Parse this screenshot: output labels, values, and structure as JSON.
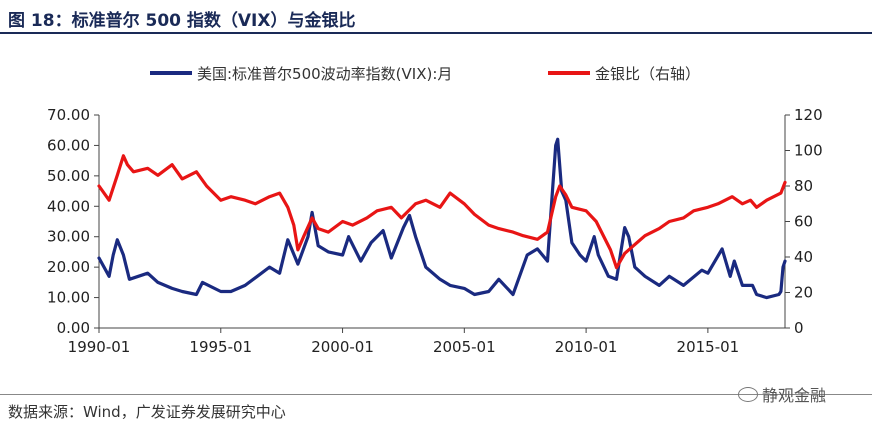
{
  "title": "图 18：标准普尔 500 指数（VIX）与金银比",
  "source": "数据来源：Wind，广发证券发展研究中心",
  "watermark": "静观金融",
  "colors": {
    "vix": "#1a2a80",
    "gold_silver": "#e81515",
    "title": "#1a2a57"
  },
  "chart_data": {
    "type": "line",
    "title": "",
    "legend_position": "top",
    "grid": false,
    "x_tick_labels": [
      "1990-01",
      "1995-01",
      "2000-01",
      "2005-01",
      "2010-01",
      "2015-01"
    ],
    "x_range": [
      "1990-01",
      "2018-03"
    ],
    "left_axis": {
      "ylim": [
        0,
        70
      ],
      "tick_labels": [
        "0.00",
        "10.00",
        "20.00",
        "30.00",
        "40.00",
        "50.00",
        "60.00",
        "70.00"
      ]
    },
    "right_axis": {
      "ylim": [
        0,
        120
      ],
      "tick_labels": [
        "0",
        "20",
        "40",
        "60",
        "80",
        "100",
        "120"
      ]
    },
    "series": [
      {
        "name": "美国:标准普尔500波动率指数(VIX):月",
        "axis": "left",
        "color": "#1a2a80",
        "x": [
          "1990-01",
          "1990-06",
          "1990-08",
          "1990-10",
          "1991-01",
          "1991-04",
          "1992-01",
          "1992-06",
          "1993-01",
          "1993-06",
          "1994-01",
          "1994-04",
          "1995-01",
          "1995-06",
          "1996-01",
          "1996-07",
          "1997-01",
          "1997-06",
          "1997-10",
          "1998-03",
          "1998-08",
          "1998-10",
          "1999-01",
          "1999-06",
          "2000-01",
          "2000-04",
          "2000-10",
          "2001-03",
          "2001-09",
          "2002-01",
          "2002-07",
          "2002-10",
          "2003-01",
          "2003-06",
          "2004-01",
          "2004-06",
          "2005-01",
          "2005-06",
          "2006-01",
          "2006-06",
          "2007-01",
          "2007-08",
          "2008-01",
          "2008-06",
          "2008-10",
          "2008-11",
          "2009-01",
          "2009-03",
          "2009-06",
          "2009-10",
          "2010-01",
          "2010-05",
          "2010-07",
          "2010-12",
          "2011-04",
          "2011-08",
          "2011-10",
          "2012-01",
          "2012-06",
          "2013-01",
          "2013-06",
          "2014-01",
          "2014-10",
          "2015-01",
          "2015-08",
          "2015-12",
          "2016-02",
          "2016-06",
          "2016-11",
          "2017-01",
          "2017-06",
          "2017-12",
          "2018-01",
          "2018-02",
          "2018-03"
        ],
        "values": [
          23,
          17,
          24,
          29,
          24,
          16,
          18,
          15,
          13,
          12,
          11,
          15,
          12,
          12,
          14,
          17,
          20,
          18,
          29,
          21,
          30,
          38,
          27,
          25,
          24,
          30,
          22,
          28,
          32,
          23,
          33,
          37,
          30,
          20,
          16,
          14,
          13,
          11,
          12,
          16,
          11,
          24,
          26,
          22,
          60,
          62,
          45,
          42,
          28,
          24,
          22,
          30,
          24,
          17,
          16,
          33,
          30,
          20,
          17,
          14,
          17,
          14,
          19,
          18,
          26,
          17,
          22,
          14,
          14,
          11,
          10,
          11,
          12,
          20,
          22
        ]
      },
      {
        "name": "金银比（右轴）",
        "axis": "right",
        "color": "#e81515",
        "x": [
          "1990-01",
          "1990-06",
          "1990-10",
          "1991-01",
          "1991-03",
          "1991-06",
          "1992-01",
          "1992-06",
          "1993-01",
          "1993-06",
          "1994-01",
          "1994-06",
          "1995-01",
          "1995-06",
          "1996-01",
          "1996-06",
          "1997-01",
          "1997-06",
          "1997-10",
          "1998-01",
          "1998-03",
          "1998-06",
          "1998-10",
          "1999-01",
          "1999-06",
          "2000-01",
          "2000-06",
          "2001-01",
          "2001-06",
          "2002-01",
          "2002-06",
          "2003-01",
          "2003-06",
          "2004-01",
          "2004-06",
          "2005-01",
          "2005-06",
          "2006-01",
          "2006-06",
          "2007-01",
          "2007-06",
          "2008-01",
          "2008-06",
          "2008-10",
          "2008-12",
          "2009-03",
          "2009-06",
          "2010-01",
          "2010-06",
          "2011-01",
          "2011-04",
          "2011-08",
          "2011-12",
          "2012-06",
          "2013-01",
          "2013-06",
          "2014-01",
          "2014-06",
          "2015-01",
          "2015-06",
          "2016-01",
          "2016-06",
          "2016-10",
          "2017-01",
          "2017-06",
          "2018-01",
          "2018-03"
        ],
        "values": [
          80,
          72,
          86,
          97,
          92,
          88,
          90,
          86,
          92,
          84,
          88,
          80,
          72,
          74,
          72,
          70,
          74,
          76,
          68,
          58,
          44,
          52,
          62,
          56,
          54,
          60,
          58,
          62,
          66,
          68,
          62,
          70,
          72,
          68,
          76,
          70,
          64,
          58,
          56,
          54,
          52,
          50,
          54,
          74,
          80,
          75,
          68,
          66,
          60,
          44,
          34,
          42,
          46,
          52,
          56,
          60,
          62,
          66,
          68,
          70,
          74,
          70,
          72,
          68,
          72,
          76,
          82
        ]
      }
    ]
  }
}
